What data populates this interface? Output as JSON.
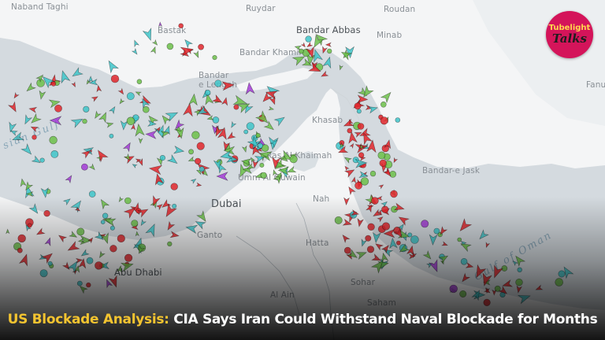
{
  "places": [
    {
      "key": "naband_taghi",
      "label": "Naband Taghi"
    },
    {
      "key": "ruydar",
      "label": "Ruydar"
    },
    {
      "key": "roudan",
      "label": "Roudan"
    },
    {
      "key": "bastak",
      "label": "Bastak"
    },
    {
      "key": "bandar_abbas",
      "label": "Bandar Abbas"
    },
    {
      "key": "minab",
      "label": "Minab"
    },
    {
      "key": "bandar_khamir",
      "label": "Bandar Khamir"
    },
    {
      "key": "bandar_e_lengeh",
      "label": "Bandar\ne Lengeh"
    },
    {
      "key": "khasab",
      "label": "Khasab"
    },
    {
      "key": "ras_al_khaimah",
      "label": "Ras Al Khaimah"
    },
    {
      "key": "umm_al_quwain",
      "label": "Umm Al Quwain"
    },
    {
      "key": "dubai",
      "label": "Dubai"
    },
    {
      "key": "ganto",
      "label": "Ganto"
    },
    {
      "key": "abu_dhabi",
      "label": "Abu Dhabi"
    },
    {
      "key": "hatta",
      "label": "Hatta"
    },
    {
      "key": "nahw",
      "label": "Nah"
    },
    {
      "key": "sohar",
      "label": "Sohar"
    },
    {
      "key": "saham",
      "label": "Saham"
    },
    {
      "key": "al_ain",
      "label": "Al Ain"
    },
    {
      "key": "bandar_e_jask",
      "label": "Bandar-e Jask"
    },
    {
      "key": "fanu",
      "label": "Fanu"
    },
    {
      "key": "persian_gulf",
      "label": "sian Gulf"
    },
    {
      "key": "gulf_of_oman",
      "label": "Gulf of Oman"
    }
  ],
  "logo": {
    "line1": "Tubelight",
    "line2": "Talks"
  },
  "headline": {
    "lead": "US Blockade Analysis:",
    "rest": " CIA Says Iran Could Withstand Naval Blockade for Months"
  },
  "colors": {
    "land": "#f4f5f6",
    "water": "#d4dadf",
    "tanker_red": "#e0262b",
    "cargo_green": "#6cc04a",
    "passenger_cyan": "#3ec4c9",
    "other_purple": "#a23ad6",
    "logo_bg": "#d4145a",
    "headline_accent": "#f4c430"
  }
}
